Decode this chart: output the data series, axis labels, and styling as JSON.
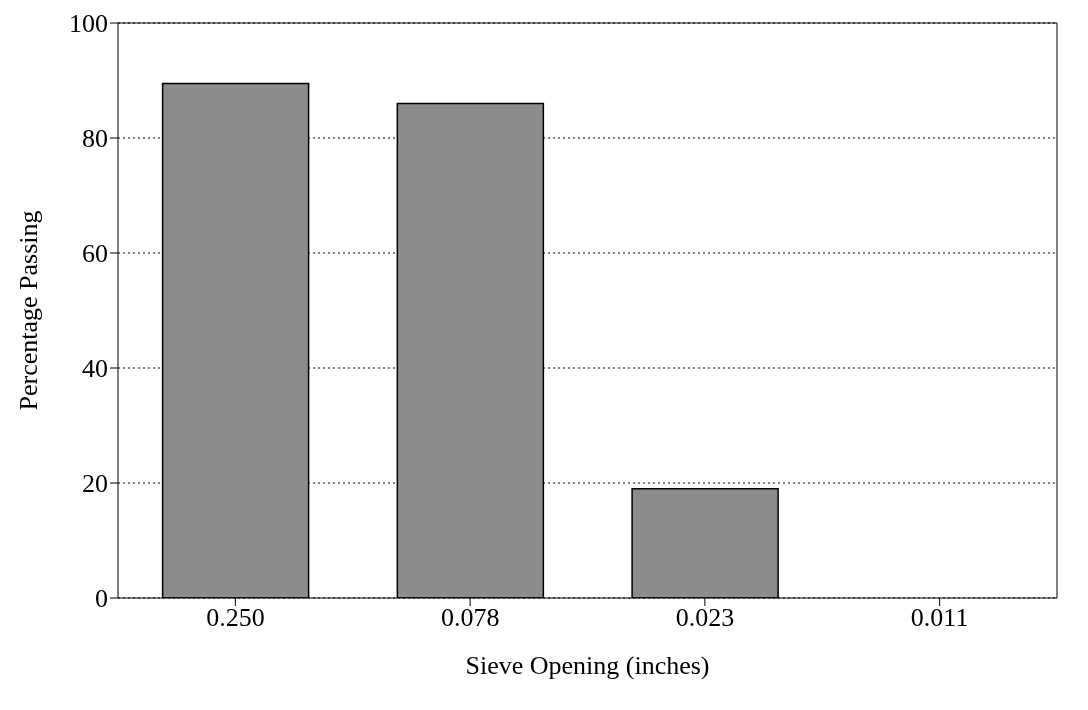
{
  "chart_data": {
    "type": "bar",
    "xlabel": "Sieve Opening (inches)",
    "ylabel": "Percentage Passing",
    "categories": [
      "0.250",
      "0.078",
      "0.023",
      "0.011"
    ],
    "values": [
      89.5,
      86,
      19,
      0
    ],
    "color": "#8c8c8c",
    "ylim": [
      0,
      100
    ],
    "yticks": [
      0,
      20,
      40,
      60,
      80,
      100
    ],
    "grid": "y"
  }
}
